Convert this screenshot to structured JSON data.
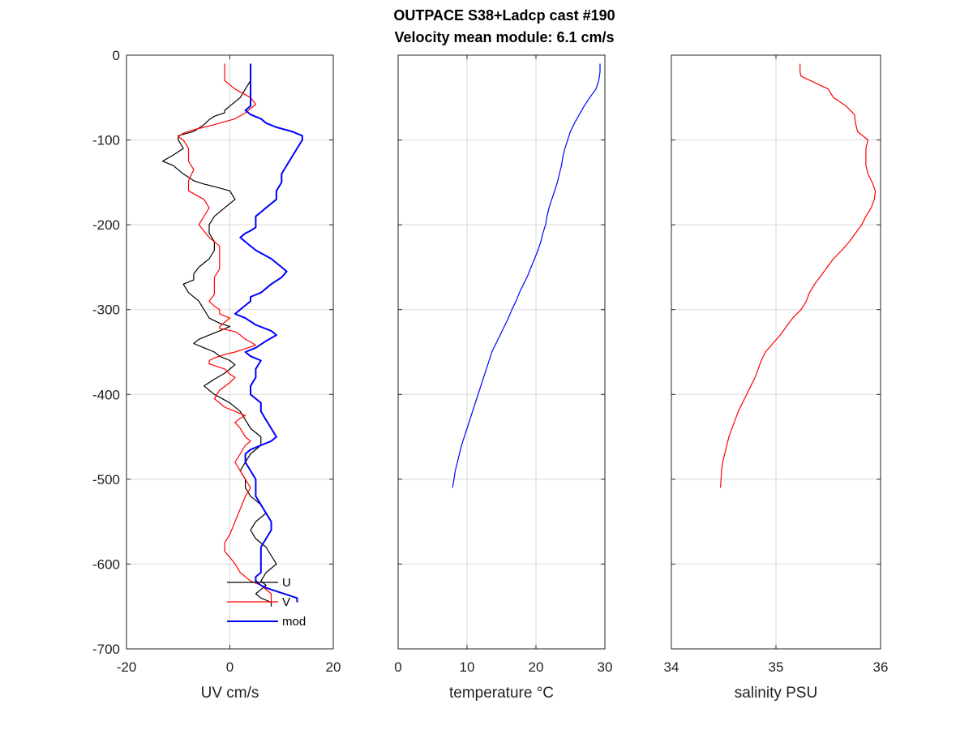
{
  "title_line1": "OUTPACE S38+Ladcp cast #190",
  "title_line2": "Velocity mean module:  6.1 cm/s",
  "chart_data": [
    {
      "type": "line",
      "id": "velocity",
      "xlabel": "UV cm/s",
      "ylabel": "",
      "xlim": [
        -20,
        20
      ],
      "ylim": [
        -700,
        0
      ],
      "xticks": [
        "-20",
        "0",
        "20"
      ],
      "yticks": [
        "0",
        "-100",
        "-200",
        "-300",
        "-400",
        "-500",
        "-600",
        "-700"
      ],
      "grid": true,
      "legend_position": "bottom-right",
      "series": [
        {
          "name": "U",
          "color": "#000000",
          "x": [
            4,
            4,
            4,
            3,
            2,
            0,
            -1,
            -1,
            -3,
            -4,
            -5,
            -7,
            -10,
            -10,
            -9,
            -11,
            -13,
            -11,
            -9,
            -7,
            -5,
            -3,
            0,
            1,
            -1,
            -3,
            -4,
            -4,
            -3,
            -3,
            -4,
            -6,
            -7,
            -7,
            -9,
            -8,
            -6,
            -5,
            -4,
            -2,
            0,
            -2,
            -4,
            -6,
            -7,
            -5,
            -3,
            -2,
            0,
            1,
            -1,
            -3,
            -5,
            -3,
            0,
            2,
            4,
            6,
            6,
            4,
            3,
            2,
            3,
            3,
            4,
            6,
            7,
            5,
            4,
            5,
            7,
            8,
            9,
            7,
            6,
            7,
            6,
            5,
            6,
            8,
            8
          ],
          "y": [
            -10,
            -20,
            -30,
            -40,
            -50,
            -60,
            -65,
            -68,
            -72,
            -76,
            -82,
            -90,
            -95,
            -100,
            -110,
            -118,
            -125,
            -130,
            -140,
            -148,
            -152,
            -155,
            -160,
            -170,
            -180,
            -190,
            -200,
            -210,
            -220,
            -230,
            -240,
            -250,
            -258,
            -265,
            -270,
            -280,
            -290,
            -300,
            -310,
            -316,
            -320,
            -325,
            -330,
            -335,
            -340,
            -345,
            -350,
            -355,
            -360,
            -365,
            -375,
            -382,
            -390,
            -400,
            -410,
            -420,
            -440,
            -450,
            -460,
            -470,
            -480,
            -490,
            -500,
            -510,
            -520,
            -530,
            -540,
            -550,
            -560,
            -570,
            -580,
            -590,
            -600,
            -610,
            -620,
            -625,
            -630,
            -635,
            -640,
            -645,
            -650
          ]
        },
        {
          "name": "V",
          "color": "#ff0000",
          "x": [
            -1,
            -1,
            -1,
            1,
            4,
            5,
            3,
            1,
            -3,
            -7,
            -9,
            -10,
            -9,
            -8,
            -8,
            -7,
            -8,
            -8,
            -5,
            -4,
            -5,
            -6,
            -4,
            -2,
            -2,
            -2,
            -3,
            -3,
            -3,
            -4,
            -3,
            -2,
            -2,
            0,
            -1,
            -2,
            -2,
            1,
            2,
            3,
            4,
            5,
            3,
            1,
            -1,
            -3,
            -4,
            -4,
            -1,
            0,
            1,
            0,
            -2,
            -3,
            -1,
            1,
            3,
            2,
            1,
            2,
            3,
            4,
            3,
            2,
            1,
            2,
            3,
            4,
            3,
            2,
            1,
            0,
            -1,
            -1,
            0,
            1,
            2,
            4,
            6,
            8,
            8
          ],
          "y": [
            -10,
            -20,
            -30,
            -40,
            -50,
            -58,
            -68,
            -75,
            -82,
            -88,
            -92,
            -96,
            -100,
            -110,
            -125,
            -135,
            -148,
            -160,
            -170,
            -180,
            -190,
            -200,
            -215,
            -225,
            -240,
            -252,
            -262,
            -272,
            -282,
            -290,
            -296,
            -300,
            -305,
            -310,
            -315,
            -320,
            -322,
            -326,
            -330,
            -335,
            -338,
            -342,
            -346,
            -350,
            -353,
            -357,
            -360,
            -364,
            -370,
            -376,
            -380,
            -386,
            -395,
            -405,
            -415,
            -420,
            -425,
            -428,
            -433,
            -440,
            -450,
            -455,
            -460,
            -470,
            -480,
            -490,
            -500,
            -510,
            -520,
            -535,
            -550,
            -565,
            -575,
            -585,
            -592,
            -600,
            -610,
            -620,
            -625,
            -635,
            -645
          ]
        },
        {
          "name": "mod",
          "color": "#0000ff",
          "x": [
            4,
            4,
            4,
            4,
            4,
            4,
            3,
            4,
            6,
            7,
            9,
            12,
            14,
            14,
            13,
            12,
            11,
            10,
            10,
            9,
            9,
            7,
            6,
            5,
            5,
            5,
            5,
            4,
            3,
            2,
            3,
            5,
            8,
            10,
            11,
            10,
            8,
            6,
            4,
            4,
            3,
            2,
            1,
            3,
            5,
            8,
            9,
            7,
            5,
            3,
            4,
            6,
            5,
            5,
            4,
            4,
            5,
            6,
            6,
            7,
            8,
            9,
            8,
            6,
            4,
            3,
            3,
            4,
            5,
            5,
            5,
            6,
            7,
            8,
            8,
            7,
            6,
            6,
            6,
            6,
            5,
            5,
            6,
            7,
            9,
            11,
            13,
            13
          ],
          "y": [
            -10,
            -20,
            -30,
            -40,
            -50,
            -60,
            -65,
            -70,
            -75,
            -80,
            -85,
            -90,
            -95,
            -100,
            -110,
            -120,
            -130,
            -140,
            -150,
            -160,
            -170,
            -180,
            -185,
            -190,
            -195,
            -200,
            -203,
            -207,
            -210,
            -215,
            -220,
            -230,
            -240,
            -250,
            -255,
            -262,
            -270,
            -280,
            -285,
            -290,
            -295,
            -300,
            -305,
            -310,
            -318,
            -325,
            -330,
            -337,
            -345,
            -350,
            -355,
            -360,
            -370,
            -380,
            -390,
            -400,
            -405,
            -410,
            -420,
            -430,
            -440,
            -450,
            -455,
            -460,
            -465,
            -470,
            -480,
            -490,
            -500,
            -510,
            -520,
            -530,
            -540,
            -550,
            -560,
            -570,
            -580,
            -590,
            -600,
            -610,
            -615,
            -620,
            -625,
            -628,
            -632,
            -636,
            -640,
            -645
          ]
        }
      ]
    },
    {
      "type": "line",
      "id": "temperature",
      "xlabel": "temperature °C",
      "ylabel": "",
      "xlim": [
        0,
        30
      ],
      "ylim": [
        -700,
        0
      ],
      "xticks": [
        "0",
        "10",
        "20",
        "30"
      ],
      "grid": true,
      "series": [
        {
          "color": "#0000ff",
          "x": [
            29.3,
            29.3,
            29.1,
            28.7,
            27.8,
            27.0,
            26.3,
            25.6,
            25.0,
            24.6,
            24.2,
            23.9,
            23.7,
            23.4,
            23.1,
            22.7,
            22.3,
            21.9,
            21.6,
            21.4,
            21.0,
            20.7,
            20.3,
            19.8,
            19.3,
            18.8,
            18.2,
            17.6,
            17.1,
            16.5,
            16.0,
            15.4,
            14.8,
            14.2,
            13.6,
            13.2,
            12.8,
            12.4,
            12.0,
            11.6,
            11.2,
            10.8,
            10.4,
            10.0,
            9.6,
            9.2,
            8.9,
            8.6,
            8.3,
            8.1,
            7.9
          ],
          "y": [
            -10,
            -20,
            -30,
            -40,
            -50,
            -60,
            -70,
            -80,
            -90,
            -100,
            -110,
            -120,
            -130,
            -140,
            -150,
            -160,
            -170,
            -180,
            -190,
            -200,
            -210,
            -220,
            -230,
            -240,
            -250,
            -260,
            -270,
            -280,
            -290,
            -300,
            -310,
            -320,
            -330,
            -340,
            -350,
            -360,
            -370,
            -380,
            -390,
            -400,
            -410,
            -420,
            -430,
            -440,
            -450,
            -460,
            -470,
            -480,
            -490,
            -500,
            -510
          ]
        }
      ]
    },
    {
      "type": "line",
      "id": "salinity",
      "xlabel": "salinity PSU",
      "ylabel": "",
      "xlim": [
        34,
        36
      ],
      "ylim": [
        -700,
        0
      ],
      "xticks": [
        "34",
        "35",
        "36"
      ],
      "grid": true,
      "series": [
        {
          "color": "#ff0000",
          "x": [
            35.23,
            35.23,
            35.24,
            35.33,
            35.5,
            35.55,
            35.67,
            35.75,
            35.76,
            35.78,
            35.88,
            35.86,
            35.86,
            35.86,
            35.88,
            35.92,
            35.95,
            35.94,
            35.91,
            35.86,
            35.82,
            35.76,
            35.7,
            35.63,
            35.55,
            35.49,
            35.43,
            35.37,
            35.32,
            35.29,
            35.24,
            35.16,
            35.1,
            35.04,
            34.97,
            34.9,
            34.86,
            34.83,
            34.8,
            34.76,
            34.72,
            34.68,
            34.64,
            34.61,
            34.58,
            34.55,
            34.53,
            34.51,
            34.49,
            34.48,
            34.47
          ],
          "y": [
            -10,
            -20,
            -25,
            -30,
            -40,
            -50,
            -60,
            -70,
            -80,
            -90,
            -100,
            -110,
            -120,
            -130,
            -140,
            -150,
            -160,
            -170,
            -180,
            -190,
            -200,
            -210,
            -220,
            -230,
            -240,
            -250,
            -260,
            -270,
            -280,
            -290,
            -300,
            -310,
            -320,
            -330,
            -340,
            -350,
            -360,
            -370,
            -380,
            -390,
            -400,
            -410,
            -420,
            -430,
            -440,
            -450,
            -460,
            -470,
            -480,
            -490,
            -510
          ]
        }
      ]
    }
  ]
}
